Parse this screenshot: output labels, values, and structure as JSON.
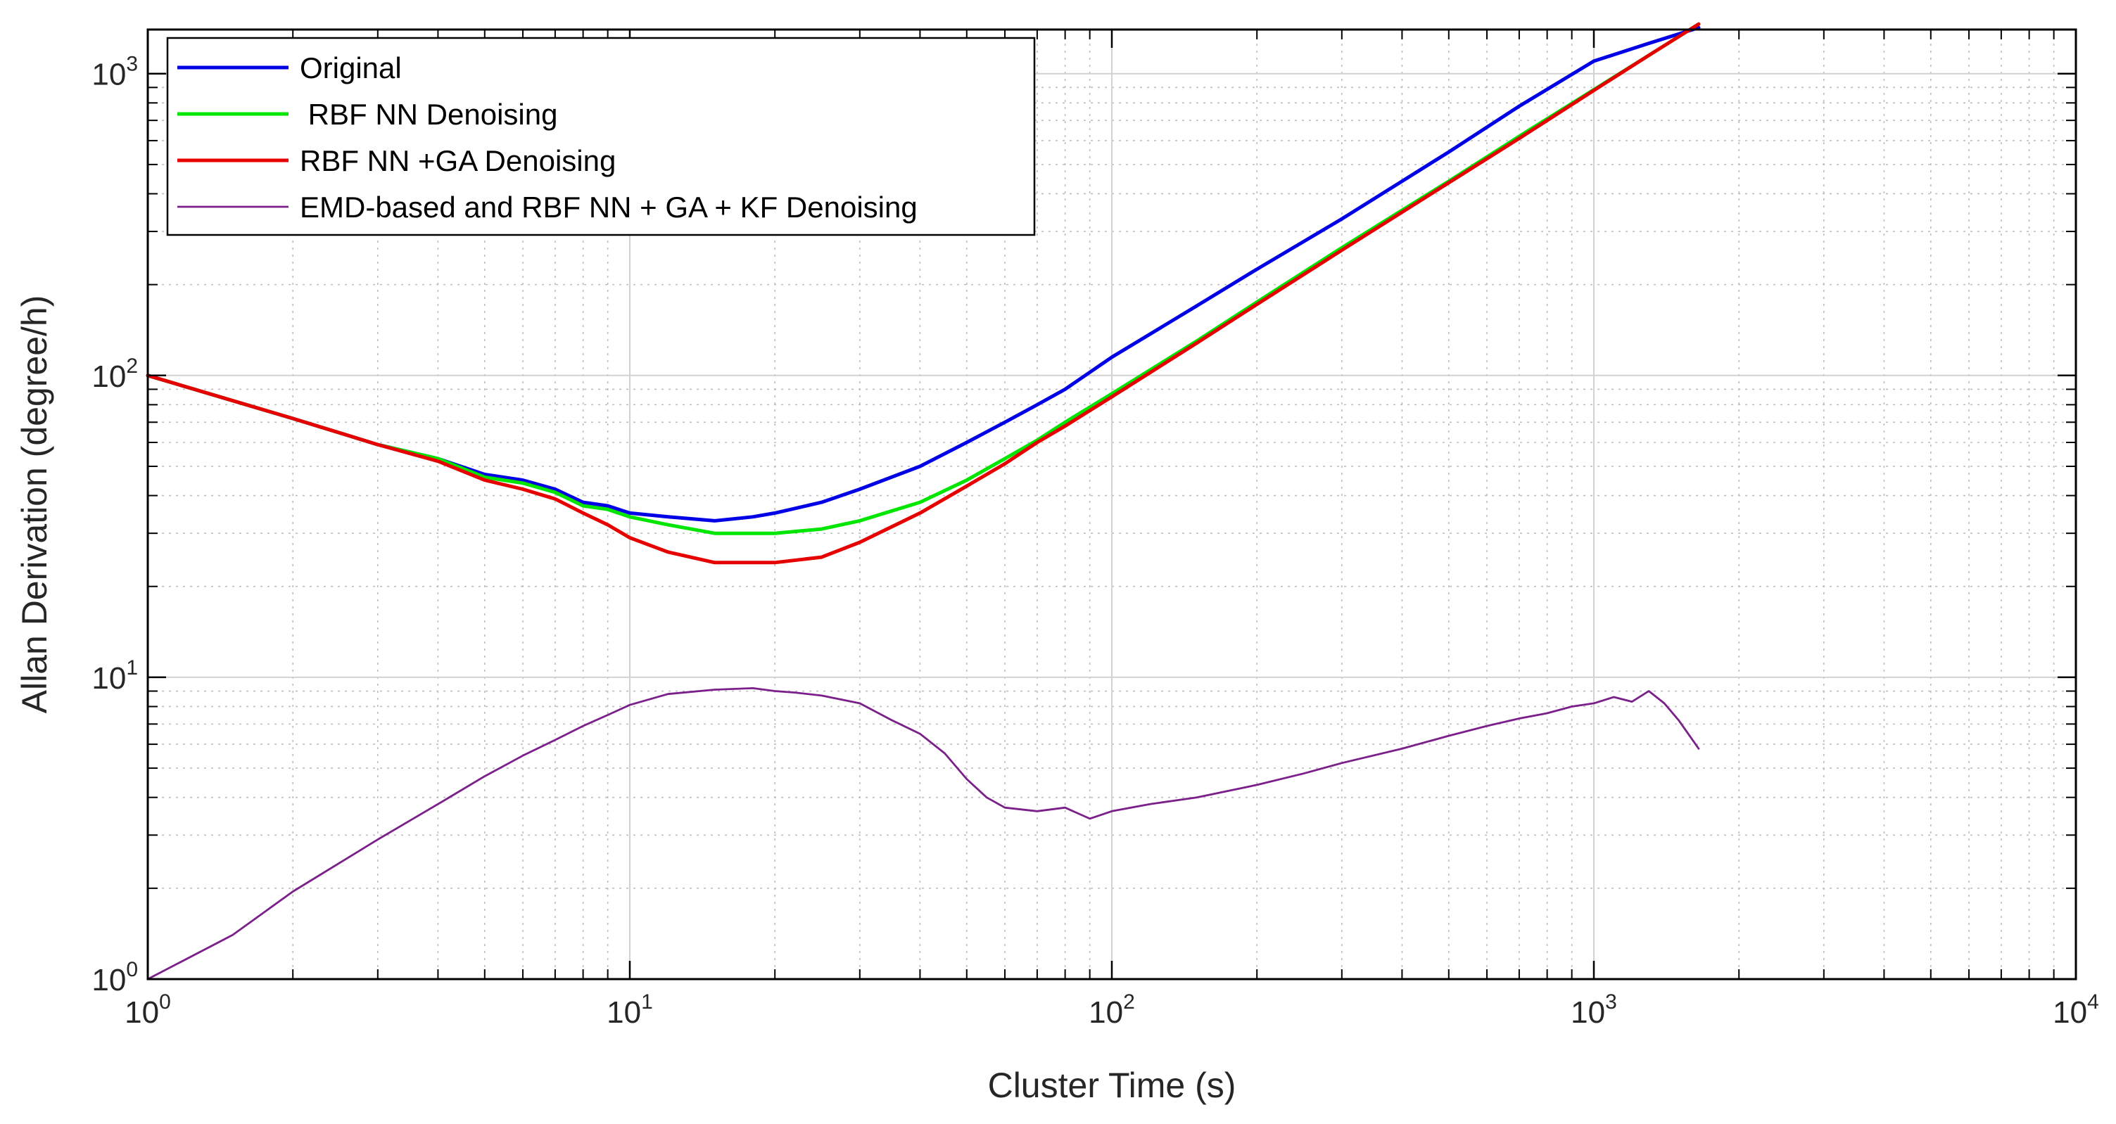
{
  "chart_data": {
    "type": "line",
    "xscale": "log",
    "yscale": "log",
    "xlim": [
      1,
      10000
    ],
    "ylim": [
      1,
      1400
    ],
    "xlabel": "Cluster Time (s)",
    "ylabel": "Allan Derivation (degree/h)",
    "grid": true,
    "minor_grid": true,
    "legend_position": "top-left",
    "x_ticks": [
      {
        "value": 1,
        "base": "10",
        "exp": "0"
      },
      {
        "value": 10,
        "base": "10",
        "exp": "1"
      },
      {
        "value": 100,
        "base": "10",
        "exp": "2"
      },
      {
        "value": 1000,
        "base": "10",
        "exp": "3"
      },
      {
        "value": 10000,
        "base": "10",
        "exp": "4"
      }
    ],
    "y_ticks": [
      {
        "value": 1,
        "base": "10",
        "exp": "0"
      },
      {
        "value": 10,
        "base": "10",
        "exp": "1"
      },
      {
        "value": 100,
        "base": "10",
        "exp": "2"
      },
      {
        "value": 1000,
        "base": "10",
        "exp": "3"
      }
    ],
    "series": [
      {
        "name": "Original",
        "color": "#0000e6",
        "stroke": "thick",
        "x": [
          1,
          2,
          3,
          4,
          5,
          6,
          7,
          8,
          9,
          10,
          12,
          15,
          18,
          20,
          25,
          30,
          40,
          50,
          60,
          70,
          80,
          100,
          150,
          200,
          300,
          500,
          700,
          1000,
          1300,
          1650
        ],
        "y": [
          100,
          72,
          59,
          53,
          47,
          45,
          42,
          38,
          37,
          35,
          34,
          33,
          34,
          35,
          38,
          42,
          50,
          60,
          70,
          80,
          90,
          115,
          170,
          225,
          330,
          550,
          780,
          1100,
          1260,
          1420
        ]
      },
      {
        "name": " RBF NN Denoising",
        "color": "#00e600",
        "stroke": "thick",
        "x": [
          1,
          2,
          3,
          4,
          5,
          6,
          7,
          8,
          9,
          10,
          12,
          15,
          18,
          20,
          25,
          30,
          40,
          50,
          60,
          70,
          80,
          100,
          150,
          200,
          300,
          500,
          700,
          1000,
          1300,
          1650
        ],
        "y": [
          100,
          72,
          59,
          53,
          46,
          44,
          41,
          37,
          36,
          34,
          32,
          30,
          30,
          30,
          31,
          33,
          38,
          45,
          53,
          61,
          70,
          87,
          130,
          175,
          265,
          440,
          620,
          885,
          1150,
          1460
        ]
      },
      {
        "name": "RBF NN +GA Denoising",
        "color": "#e60000",
        "stroke": "thick",
        "x": [
          1,
          2,
          3,
          4,
          5,
          6,
          7,
          8,
          9,
          10,
          12,
          15,
          18,
          20,
          25,
          30,
          40,
          50,
          60,
          70,
          80,
          100,
          150,
          200,
          300,
          500,
          700,
          1000,
          1300,
          1650
        ],
        "y": [
          100,
          72,
          59,
          52,
          45,
          42,
          39,
          35,
          32,
          29,
          26,
          24,
          24,
          24,
          25,
          28,
          35,
          43,
          51,
          60,
          68,
          85,
          128,
          172,
          260,
          435,
          610,
          880,
          1150,
          1460
        ]
      },
      {
        "name": "EMD-based and RBF NN + GA + KF Denoising",
        "color": "#7b1f8a",
        "stroke": "thin",
        "x": [
          1,
          1.5,
          2,
          3,
          4,
          5,
          6,
          7,
          8,
          9,
          10,
          12,
          15,
          18,
          20,
          22,
          25,
          30,
          35,
          40,
          45,
          50,
          55,
          60,
          70,
          80,
          90,
          100,
          120,
          150,
          200,
          250,
          300,
          400,
          500,
          600,
          700,
          800,
          900,
          1000,
          1100,
          1200,
          1300,
          1400,
          1500,
          1650
        ],
        "y": [
          1.0,
          1.4,
          1.95,
          2.9,
          3.8,
          4.7,
          5.5,
          6.2,
          6.9,
          7.5,
          8.1,
          8.8,
          9.1,
          9.2,
          9.0,
          8.9,
          8.7,
          8.2,
          7.2,
          6.5,
          5.6,
          4.6,
          4.0,
          3.7,
          3.6,
          3.7,
          3.4,
          3.6,
          3.8,
          4.0,
          4.4,
          4.8,
          5.2,
          5.8,
          6.4,
          6.9,
          7.3,
          7.6,
          8.0,
          8.2,
          8.6,
          8.3,
          9.0,
          8.2,
          7.2,
          5.8
        ]
      }
    ]
  }
}
